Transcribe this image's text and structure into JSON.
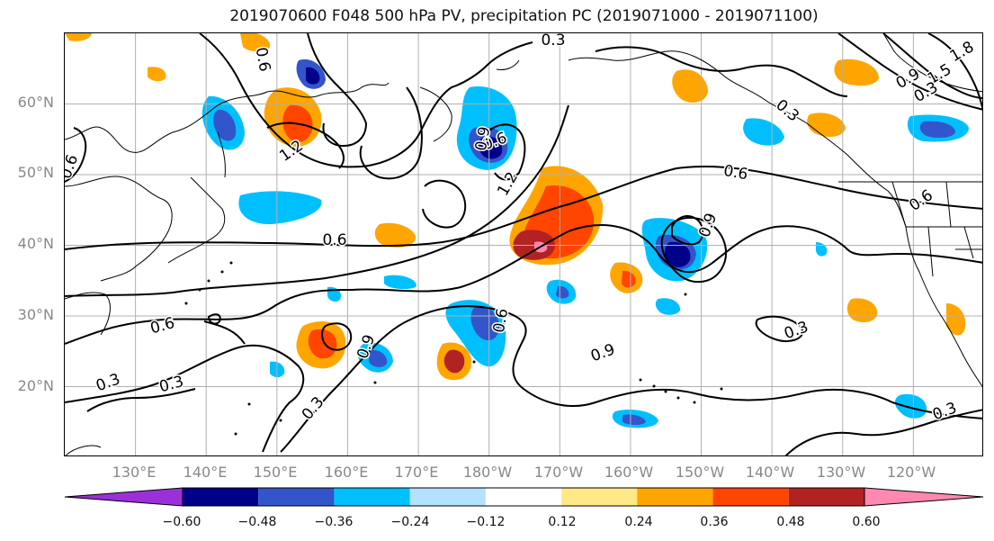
{
  "title": "2019070600 F048 500 hPa PV, precipitation PC (2019071000 - 2019071100)",
  "lat_labels": [
    "60°N",
    "50°N",
    "40°N",
    "30°N",
    "20°N"
  ],
  "lon_labels": [
    "130°E",
    "140°E",
    "150°E",
    "160°E",
    "170°E",
    "180°W",
    "170°W",
    "160°W",
    "150°W",
    "140°W",
    "130°W",
    "120°W"
  ],
  "map": {
    "projection": "plate-carree",
    "lon_range_deg_east": [
      120,
      250
    ],
    "lat_range": [
      10,
      70
    ],
    "contour_labels": [
      "0.3",
      "0.6",
      "0.9",
      "1.2",
      "1.5",
      "1.8",
      "0.3",
      "0.6",
      "0.9",
      "1.2",
      "0.6",
      "0.6",
      "0.6",
      "0.6",
      "0.9",
      "0.3",
      "0.3",
      "0.3",
      "0.9",
      "0.6",
      "0.3",
      "0.3",
      "0.6",
      "0.9",
      "0.3"
    ]
  },
  "colorbar": {
    "colors": [
      "#9b30d8",
      "#00008b",
      "#3355cc",
      "#00bfff",
      "#b3e2ff",
      "#ffffff",
      "#ffe987",
      "#ffa500",
      "#ff4500",
      "#b22222",
      "#ff88b0"
    ],
    "ticks": [
      "−0.60",
      "−0.48",
      "−0.36",
      "−0.24",
      "−0.12",
      "0.12",
      "0.24",
      "0.36",
      "0.48",
      "0.60"
    ],
    "extend": "both"
  }
}
